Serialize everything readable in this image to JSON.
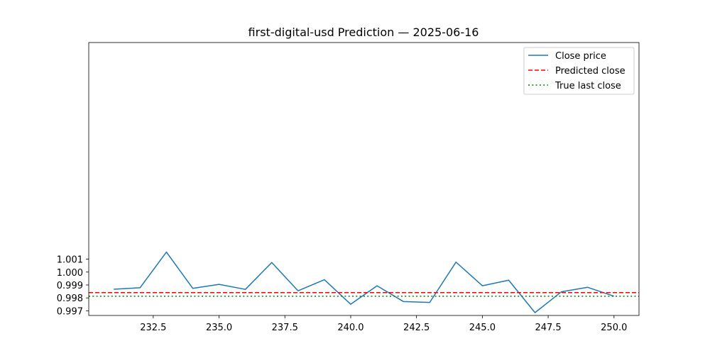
{
  "chart_data": {
    "type": "line",
    "title": "first-digital-usd Prediction — 2025-06-16",
    "xlabel": "",
    "ylabel": "",
    "xlim": [
      230.05,
      250.95
    ],
    "ylim": [
      0.99664,
      1.01777
    ],
    "x_ticks": [
      232.5,
      235.0,
      237.5,
      240.0,
      242.5,
      245.0,
      247.5,
      250.0
    ],
    "x_tick_labels": [
      "232.5",
      "235.0",
      "237.5",
      "240.0",
      "242.5",
      "245.0",
      "247.5",
      "250.0"
    ],
    "y_ticks": [
      0.997,
      0.998,
      0.999,
      1.0,
      1.001
    ],
    "y_tick_labels": [
      "0.997",
      "0.998",
      "0.999",
      "1.000",
      "1.001"
    ],
    "grid": false,
    "legend_position": "upper right",
    "series": [
      {
        "name": "Close price",
        "color": "#1f77b4",
        "style": "solid",
        "x": [
          231,
          232,
          233,
          234,
          235,
          236,
          237,
          238,
          239,
          240,
          241,
          242,
          243,
          244,
          245,
          246,
          247,
          248,
          249,
          250
        ],
        "values": [
          0.99867,
          0.99879,
          1.00155,
          0.99874,
          0.99905,
          0.99866,
          1.00074,
          0.99855,
          0.99941,
          0.99751,
          0.99894,
          0.99772,
          0.99765,
          1.00077,
          0.99894,
          0.99937,
          0.99686,
          0.99847,
          0.99882,
          0.99813
        ]
      },
      {
        "name": "Predicted close",
        "color": "#ff0000",
        "style": "dashed",
        "hline": 0.99841
      },
      {
        "name": "True last close",
        "color": "#008000",
        "style": "dotted",
        "hline": 0.99813
      }
    ]
  }
}
